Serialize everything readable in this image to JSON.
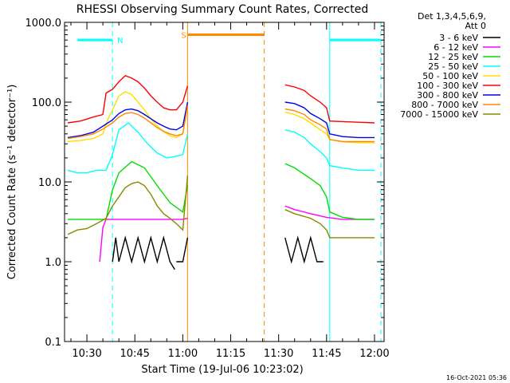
{
  "chart_data": {
    "type": "line",
    "title": "RHESSI Observing Summary Count Rates, Corrected",
    "xlabel": "Start Time (19-Jul-06 10:23:02)",
    "ylabel": "Corrected Count Rate (s⁻¹ detector⁻¹)",
    "x_ticks": [
      "10:30",
      "10:45",
      "11:00",
      "11:15",
      "11:30",
      "11:45",
      "12:00"
    ],
    "x_tick_minutes": [
      30,
      45,
      60,
      75,
      90,
      105,
      120
    ],
    "x_range_minutes": [
      23,
      123
    ],
    "y_scale": "log",
    "y_ticks": [
      "0.1",
      "1.0",
      "10.0",
      "100.0",
      "1000.0"
    ],
    "y_range": [
      0.1,
      1000
    ],
    "legend_header": [
      "Det 1,3,4,5,6,9,",
      "Att 0"
    ],
    "legend_placement": "right",
    "series": [
      {
        "name": "3 - 6 keV",
        "color": "#000000",
        "segments": [
          {
            "x": [
              38,
              39,
              40,
              42,
              44,
              46,
              48,
              50,
              52,
              54,
              56,
              57.5
            ],
            "y": [
              1.0,
              2.0,
              1.0,
              2.0,
              1.0,
              2.0,
              1.0,
              2.0,
              1.0,
              2.0,
              1.0,
              0.8
            ]
          },
          {
            "x": [
              58,
              60,
              61.5
            ],
            "y": [
              1.0,
              1.0,
              2.0
            ]
          },
          {
            "x": [
              92,
              94,
              96,
              98,
              100,
              102,
              104
            ],
            "y": [
              2.0,
              1.0,
              2.0,
              1.0,
              2.0,
              1.0,
              1.0
            ]
          }
        ]
      },
      {
        "name": "6 - 12 keV",
        "color": "#ff00ff",
        "segments": [
          {
            "x": [
              34,
              35,
              36,
              38,
              40,
              45,
              50,
              55,
              60,
              61.5
            ],
            "y": [
              1.0,
              2.7,
              3.4,
              3.4,
              3.4,
              3.4,
              3.4,
              3.4,
              3.4,
              3.5
            ]
          },
          {
            "x": [
              92,
              95,
              100,
              105,
              110,
              115,
              120
            ],
            "y": [
              5.0,
              4.5,
              4.0,
              3.6,
              3.4,
              3.4,
              3.4
            ]
          }
        ]
      },
      {
        "name": "12 - 25 keV",
        "color": "#00dd00",
        "segments": [
          {
            "x": [
              24,
              28,
              32,
              36,
              38,
              40,
              44,
              48,
              52,
              56,
              60,
              61.5
            ],
            "y": [
              3.4,
              3.4,
              3.4,
              3.4,
              8.0,
              13,
              18,
              15,
              9,
              5.5,
              4.2,
              9
            ]
          },
          {
            "x": [
              92,
              95,
              100,
              103,
              105,
              106,
              110,
              115,
              120
            ],
            "y": [
              17,
              15,
              11,
              9.0,
              6.5,
              4.2,
              3.6,
              3.4,
              3.4
            ]
          }
        ]
      },
      {
        "name": "25 - 50 keV",
        "color": "#00ffff",
        "segments": [
          {
            "x": [
              24,
              27,
              30,
              33,
              36,
              38,
              40,
              43,
              46,
              49,
              52,
              55,
              58,
              60,
              61.5
            ],
            "y": [
              14,
              13,
              13,
              14,
              14,
              22,
              45,
              55,
              42,
              30,
              23,
              20,
              21,
              22,
              40
            ]
          },
          {
            "x": [
              92,
              95,
              98,
              100,
              103,
              105,
              106,
              110,
              115,
              120
            ],
            "y": [
              45,
              42,
              36,
              30,
              24,
              20,
              16,
              15,
              14,
              14
            ]
          }
        ]
      },
      {
        "name": "50 - 100 keV",
        "color": "#ffdd00",
        "segments": [
          {
            "x": [
              24,
              28,
              32,
              35,
              36.5,
              38,
              40,
              42,
              44,
              46,
              48,
              50,
              52,
              54,
              56,
              58,
              60,
              61.5
            ],
            "y": [
              32,
              33,
              35,
              40,
              60,
              80,
              120,
              135,
              125,
              100,
              80,
              62,
              50,
              43,
              38,
              36,
              40,
              100
            ]
          },
          {
            "x": [
              92,
              95,
              98,
              100,
              103,
              105,
              106,
              110,
              115,
              120
            ],
            "y": [
              75,
              70,
              62,
              55,
              45,
              40,
              34,
              32,
              31,
              31
            ]
          }
        ]
      },
      {
        "name": "100 - 300 keV",
        "color": "#ff0000",
        "segments": [
          {
            "x": [
              24,
              28,
              32,
              35,
              36,
              38,
              40,
              42,
              44,
              46,
              48,
              50,
              52,
              54,
              56,
              58,
              60,
              61.5
            ],
            "y": [
              55,
              58,
              65,
              70,
              130,
              145,
              180,
              215,
              200,
              180,
              150,
              120,
              100,
              85,
              80,
              80,
              100,
              160
            ]
          },
          {
            "x": [
              92,
              95,
              98,
              100,
              103,
              105,
              106,
              110,
              115,
              120
            ],
            "y": [
              165,
              155,
              140,
              120,
              100,
              85,
              58,
              57,
              56,
              55
            ]
          }
        ]
      },
      {
        "name": "300 - 800 keV",
        "color": "#0000ee",
        "segments": [
          {
            "x": [
              24,
              28,
              32,
              35,
              38,
              40,
              42,
              44,
              46,
              48,
              50,
              52,
              54,
              56,
              58,
              60,
              61.5
            ],
            "y": [
              36,
              38,
              42,
              50,
              60,
              72,
              80,
              82,
              78,
              70,
              62,
              55,
              50,
              46,
              45,
              50,
              100
            ]
          },
          {
            "x": [
              92,
              95,
              98,
              100,
              103,
              105,
              106,
              110,
              115,
              120
            ],
            "y": [
              100,
              96,
              85,
              72,
              62,
              55,
              40,
              37,
              36,
              36
            ]
          }
        ]
      },
      {
        "name": "800 - 7000 keV",
        "color": "#ff8800",
        "segments": [
          {
            "x": [
              24,
              28,
              32,
              35,
              38,
              40,
              42,
              44,
              46,
              48,
              50,
              52,
              54,
              56,
              58,
              60,
              61.5
            ],
            "y": [
              35,
              37,
              40,
              46,
              55,
              65,
              72,
              74,
              70,
              63,
              55,
              48,
              43,
              40,
              38,
              40,
              90
            ]
          },
          {
            "x": [
              92,
              95,
              98,
              100,
              103,
              105,
              106,
              110,
              115,
              120
            ],
            "y": [
              82,
              78,
              70,
              60,
              52,
              46,
              34,
              32,
              32,
              32
            ]
          }
        ]
      },
      {
        "name": "7000 - 15000 keV",
        "color": "#888800",
        "segments": [
          {
            "x": [
              24,
              27,
              30,
              33,
              36,
              38,
              40,
              42,
              44,
              46,
              48,
              50,
              52,
              54,
              56,
              58,
              60,
              61.5
            ],
            "y": [
              2.2,
              2.5,
              2.6,
              3.0,
              3.5,
              5.0,
              6.5,
              8.5,
              9.5,
              10,
              9,
              7,
              5,
              4,
              3.5,
              3.0,
              2.5,
              12
            ]
          },
          {
            "x": [
              92,
              95,
              100,
              103,
              105,
              106,
              110,
              115,
              120
            ],
            "y": [
              4.5,
              4.0,
              3.5,
              3.0,
              2.5,
              2.0,
              2.0,
              2.0,
              2.0
            ]
          }
        ]
      }
    ],
    "markers": [
      {
        "label": "N",
        "color": "#00ffff",
        "x_start": 27,
        "x_end": 38,
        "y": 600
      },
      {
        "label": "",
        "color": "#00ffff",
        "x_start": 106,
        "x_end": 122,
        "y": 600
      },
      {
        "label": "S",
        "color": "#ff8800",
        "x_start": 61.5,
        "x_end": 85.5,
        "y": 700
      }
    ],
    "vlines": [
      {
        "x": 23,
        "color": "#00ffff",
        "style": "solid"
      },
      {
        "x": 38,
        "color": "#00ffff",
        "style": "dashed"
      },
      {
        "x": 61.5,
        "color": "#ff8800",
        "style": "solid"
      },
      {
        "x": 85.5,
        "color": "#ff8800",
        "style": "dashed"
      },
      {
        "x": 106,
        "color": "#00ffff",
        "style": "solid"
      },
      {
        "x": 122,
        "color": "#00ffff",
        "style": "dashed"
      }
    ],
    "timestamp": "16-Oct-2021 05:36"
  }
}
